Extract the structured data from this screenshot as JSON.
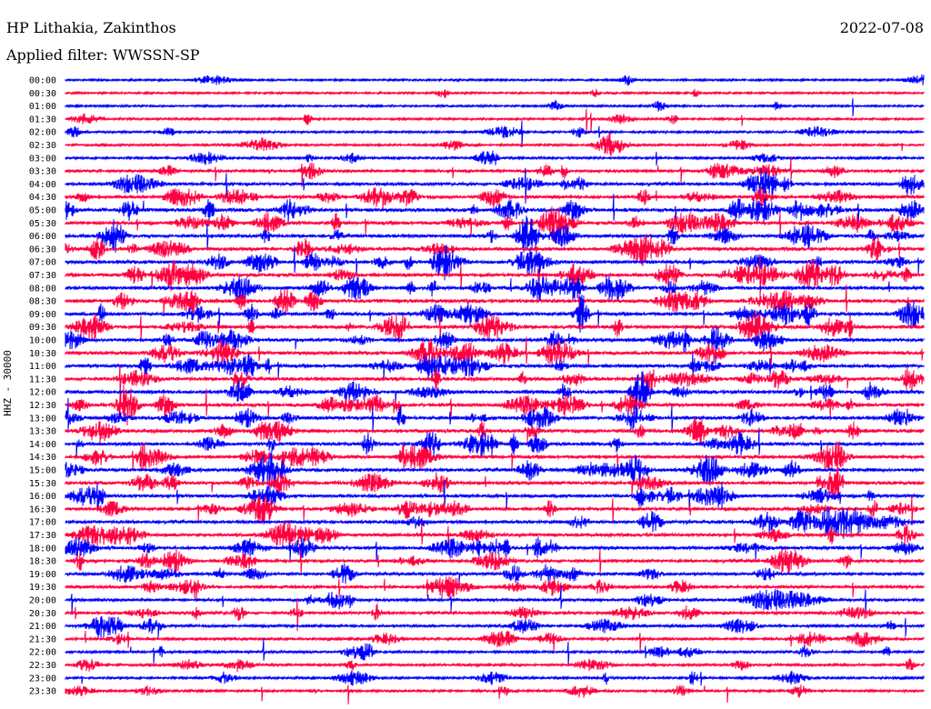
{
  "header": {
    "station": "HP Lithakia, Zakinthos",
    "filter": "Applied filter: WWSSN-SP",
    "date": "2022-07-08"
  },
  "chart_data": {
    "type": "line",
    "title": "HP Lithakia, Zakinthos",
    "subtitle": "Applied filter: WWSSN-SP",
    "ylabel": "HHZ - 30000",
    "row_labels": [
      "00:00",
      "00:30",
      "01:00",
      "01:30",
      "02:00",
      "02:30",
      "03:00",
      "03:30",
      "04:00",
      "04:30",
      "05:00",
      "05:30",
      "06:00",
      "06:30",
      "07:00",
      "07:30",
      "08:00",
      "08:30",
      "09:00",
      "09:30",
      "10:00",
      "10:30",
      "11:00",
      "11:30",
      "12:00",
      "12:30",
      "13:00",
      "13:30",
      "14:00",
      "14:30",
      "15:00",
      "15:30",
      "16:00",
      "16:30",
      "17:00",
      "17:30",
      "18:00",
      "18:30",
      "19:00",
      "19:30",
      "20:00",
      "20:30",
      "21:00",
      "21:30",
      "22:00",
      "22:30",
      "23:00",
      "23:30"
    ],
    "series_colors": [
      "#0000ff",
      "#ff0040"
    ],
    "activity": [
      0.15,
      0.15,
      0.15,
      0.2,
      0.25,
      0.3,
      0.35,
      0.5,
      0.7,
      0.8,
      0.9,
      0.9,
      0.9,
      0.9,
      0.9,
      0.95,
      0.95,
      0.95,
      0.95,
      0.95,
      0.9,
      0.9,
      0.9,
      0.9,
      0.95,
      0.95,
      0.9,
      0.9,
      0.85,
      0.85,
      0.85,
      0.85,
      0.8,
      0.8,
      0.8,
      0.75,
      0.75,
      0.7,
      0.65,
      0.6,
      0.55,
      0.55,
      0.5,
      0.45,
      0.4,
      0.4,
      0.35,
      0.35
    ],
    "grid": false
  }
}
